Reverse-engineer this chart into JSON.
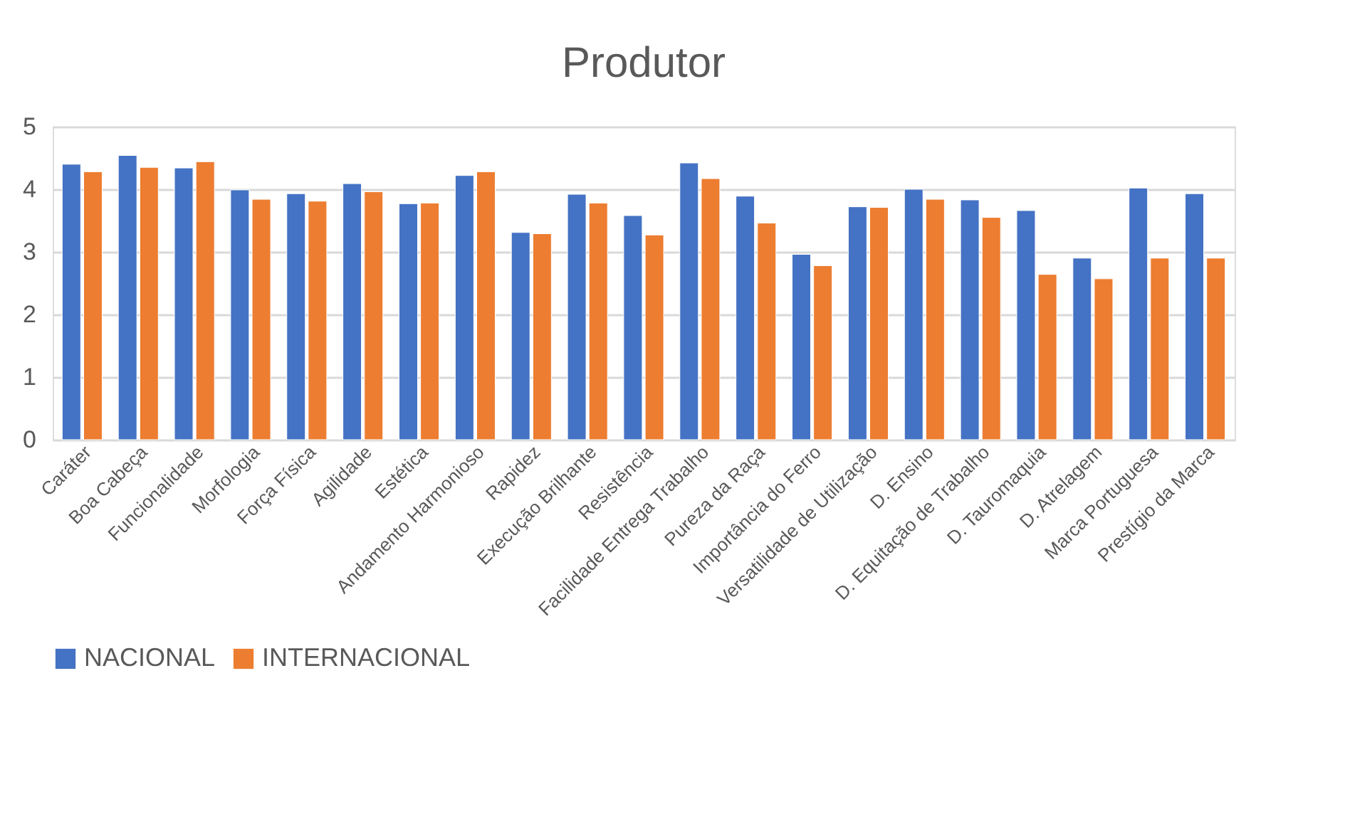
{
  "chart_data": {
    "type": "bar",
    "title": "Produtor",
    "categories": [
      "Caráter",
      "Boa Cabeça",
      "Funcionalidade",
      "Morfologia",
      "Força Física",
      "Agilidade",
      "Estética",
      "Andamento Harmonioso",
      "Rapidez",
      "Execução Brilhante",
      "Resistência",
      "Facilidade Entrega Trabalho",
      "Pureza da Raça",
      "Importância do Ferro",
      "Versatilidade de Utilização",
      "D. Ensino",
      "D. Equitação de Trabalho",
      "D. Tauromaquia",
      "D. Atrelagem",
      "Marca Portuguesa",
      "Prestígio da Marca"
    ],
    "series": [
      {
        "name": "NACIONAL",
        "color": "#4472c4",
        "values": [
          4.4,
          4.54,
          4.34,
          3.99,
          3.93,
          4.09,
          3.77,
          4.22,
          3.31,
          3.92,
          3.58,
          4.42,
          3.89,
          2.96,
          3.72,
          4.0,
          3.83,
          3.66,
          2.9,
          4.02,
          3.93
        ]
      },
      {
        "name": "INTERNACIONAL",
        "color": "#ed7d31",
        "values": [
          4.28,
          4.35,
          4.44,
          3.84,
          3.81,
          3.96,
          3.78,
          4.28,
          3.29,
          3.78,
          3.27,
          4.17,
          3.46,
          2.78,
          3.71,
          3.84,
          3.55,
          2.64,
          2.57,
          2.9,
          2.9
        ]
      }
    ],
    "ylim": [
      0,
      5
    ],
    "yticks": [
      0,
      1,
      2,
      3,
      4,
      5
    ],
    "grid": "y",
    "legend": "bottom"
  }
}
